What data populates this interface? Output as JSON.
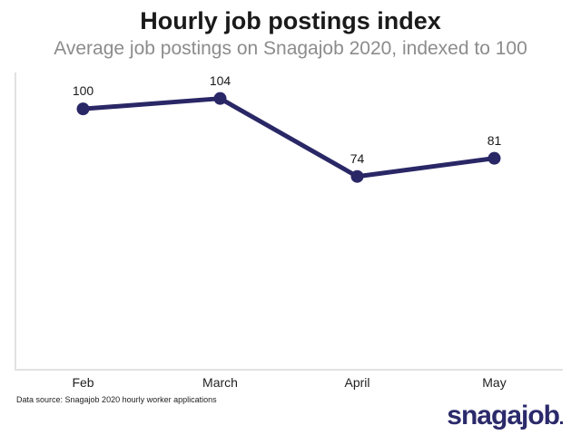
{
  "header": {
    "title": "Hourly job postings index",
    "subtitle": "Average job postings on Snagajob 2020, indexed to 100"
  },
  "chart_data": {
    "type": "line",
    "title": "Hourly job postings index",
    "subtitle": "Average job postings on Snagajob 2020, indexed to 100",
    "categories": [
      "Feb",
      "March",
      "April",
      "May"
    ],
    "values": [
      100,
      104,
      74,
      81
    ],
    "xlabel": "",
    "ylabel": "",
    "ylim": [
      0,
      114
    ],
    "grid": false,
    "legend": "none",
    "line_color": "#2a2766",
    "marker": "circle",
    "value_labels_shown": true
  },
  "footer": {
    "data_source": "Data source: Snagajob 2020 hourly worker applications"
  },
  "logo": {
    "text": "snagajob"
  },
  "colors": {
    "line": "#2a2766",
    "axis": "#e2e2e2",
    "title": "#1a1a1a",
    "subtitle": "#8c8c8c",
    "logo": "#2b2a6b",
    "background": "#ffffff"
  }
}
